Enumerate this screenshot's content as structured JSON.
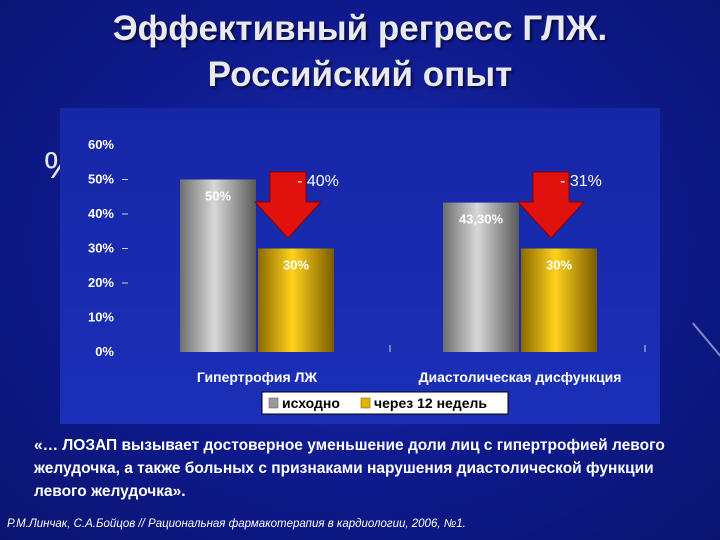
{
  "slide": {
    "title_line1": "Эффективный регресс ГЛЖ.",
    "title_line2": "Российский опыт",
    "percent_symbol": "%",
    "quote": "«… ЛОЗАП вызывает достоверное уменьшение доли лиц с гипертрофией левого желудочка, а также больных с признаками нарушения диастолической функции левого желудочка».",
    "citation": "Р.М.Линчак, С.А.Бойцов // Рациональная фармакотерапия в кардиологии, 2006, №1."
  },
  "chart_data": {
    "type": "bar",
    "categories": [
      "Гипертрофия ЛЖ",
      "Диастолическая дисфункция"
    ],
    "series": [
      {
        "name": "исходно",
        "values": [
          50,
          43.3
        ],
        "labels": [
          "50%",
          "43,30%"
        ],
        "color": "#a9a9a9"
      },
      {
        "name": "через 12 недель",
        "values": [
          30,
          30
        ],
        "labels": [
          "30%",
          "30%"
        ],
        "color": "#e0b400"
      }
    ],
    "yticks": [
      "0%",
      "10%",
      "20%",
      "30%",
      "40%",
      "50%",
      "60%"
    ],
    "ylim": [
      0,
      60
    ],
    "grid": false,
    "legend_position": "bottom",
    "annotations": [
      {
        "text": "- 40%",
        "category": "Гипертрофия ЛЖ",
        "arrow_color": "#e0120e"
      },
      {
        "text": "- 31%",
        "category": "Диастолическая дисфункция",
        "arrow_color": "#e0120e"
      }
    ]
  }
}
